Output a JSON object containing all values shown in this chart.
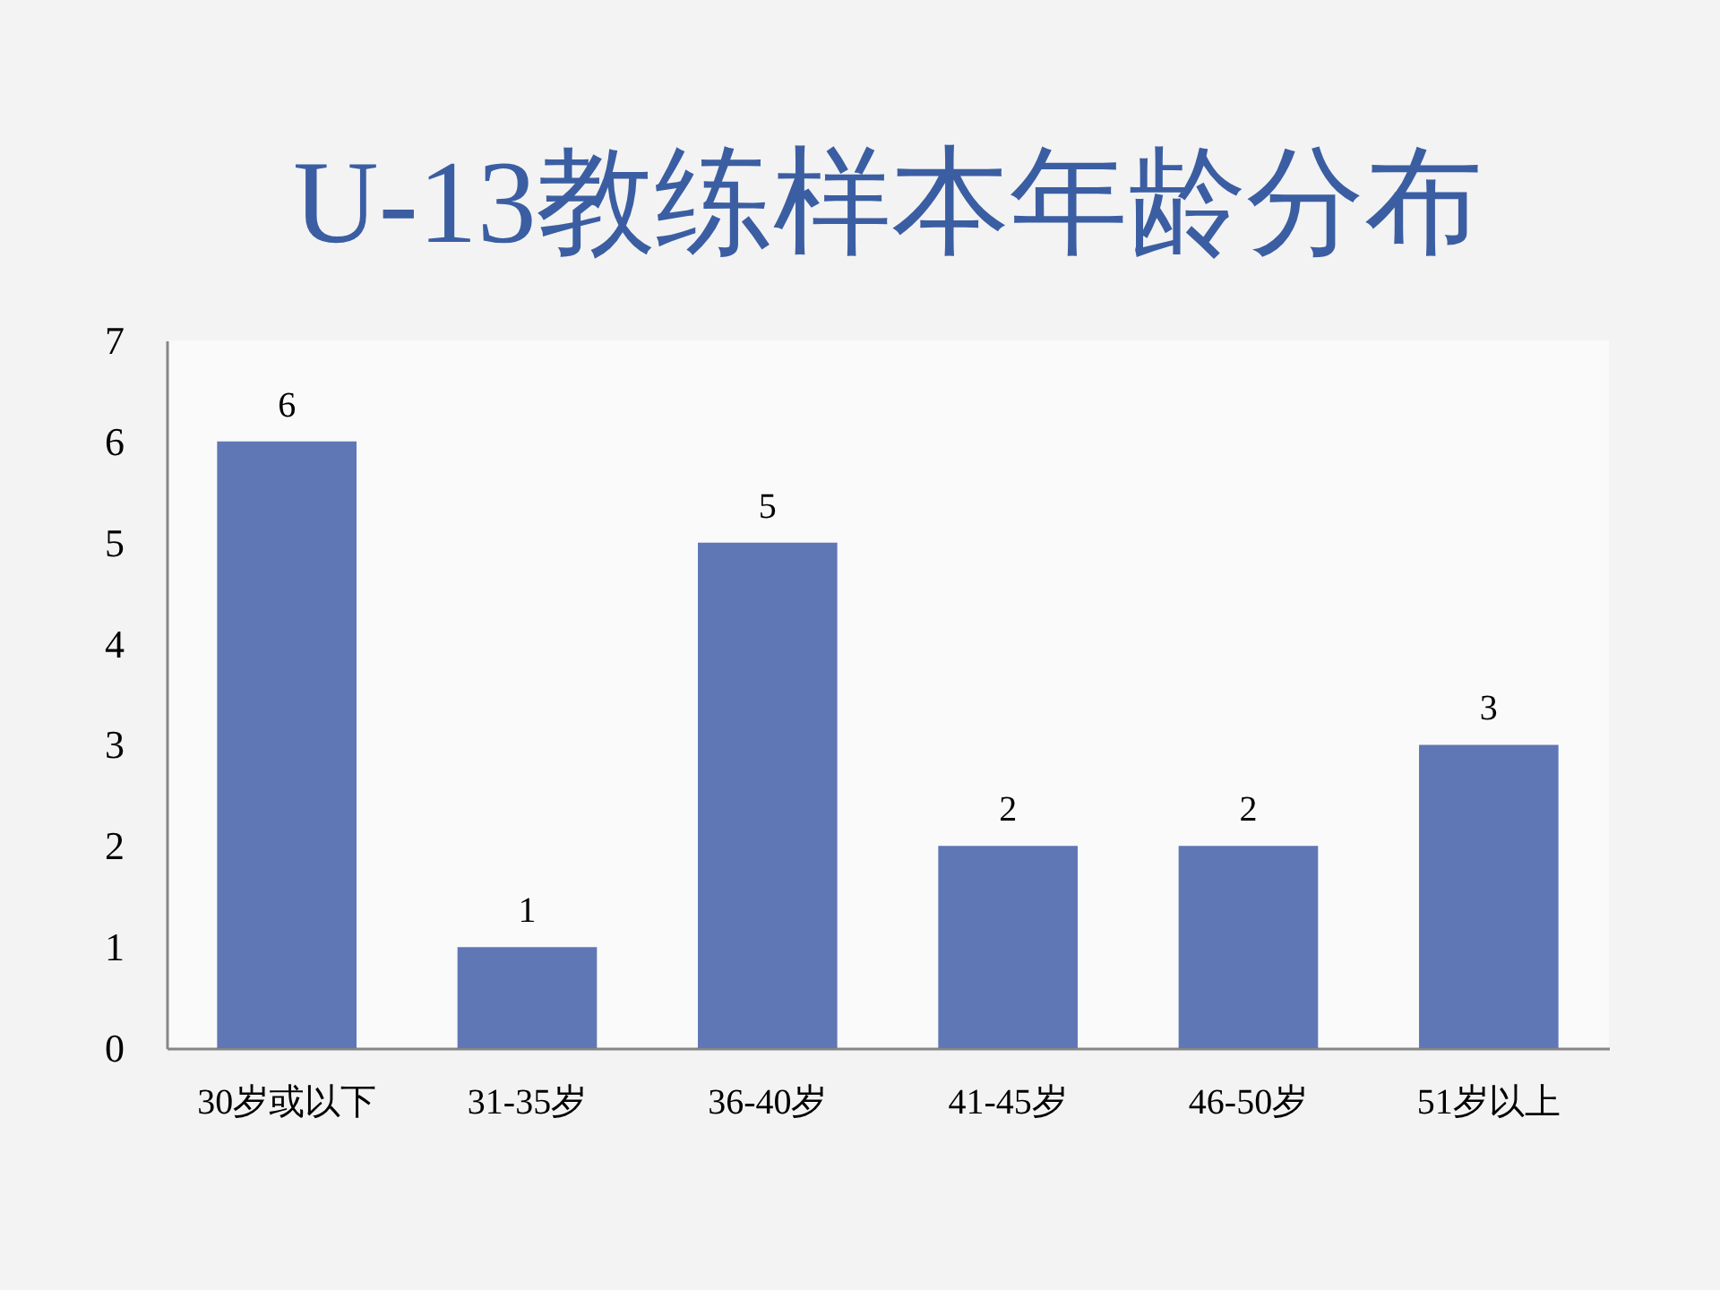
{
  "chart_data": {
    "type": "bar",
    "title": "U-13教练样本年龄分布",
    "categories": [
      "30岁或以下",
      "31-35岁",
      "36-40岁",
      "41-45岁",
      "46-50岁",
      "51岁以上"
    ],
    "values": [
      6,
      1,
      5,
      2,
      2,
      3
    ],
    "color": "#5f77b5",
    "ylim": [
      0,
      7
    ],
    "yticks": [
      0,
      1,
      2,
      3,
      4,
      5,
      6,
      7
    ],
    "data_labels": true
  }
}
